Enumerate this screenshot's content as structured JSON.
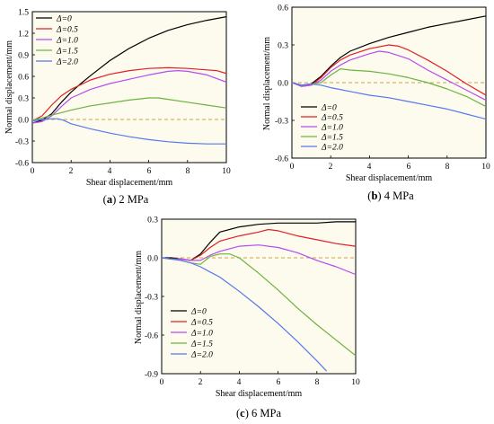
{
  "chart_data": [
    {
      "type": "line",
      "caption_letter": "a",
      "caption_text": "2 MPa",
      "xlabel": "Shear displacement/mm",
      "ylabel": "Normal displacement/mm",
      "xlim": [
        0,
        10
      ],
      "ylim": [
        -0.6,
        1.5
      ],
      "x_ticks": [
        "0",
        "2",
        "4",
        "6",
        "8",
        "10"
      ],
      "y_ticks": [
        "-0.6",
        "-0.3",
        "0.0",
        "0.3",
        "0.6",
        "0.9",
        "1.2",
        "1.5"
      ],
      "legend_position": "top-left",
      "reference_line_y": 0,
      "series": [
        {
          "name": "Δ=0",
          "color": "#000000",
          "x": [
            0,
            0.5,
            1,
            1.5,
            2,
            2.5,
            3,
            4,
            5,
            6,
            7,
            8,
            9,
            10
          ],
          "y": [
            -0.05,
            -0.01,
            0.08,
            0.24,
            0.38,
            0.5,
            0.61,
            0.82,
            0.99,
            1.13,
            1.24,
            1.32,
            1.38,
            1.43
          ]
        },
        {
          "name": "Δ=0.5",
          "color": "#e0202a",
          "x": [
            0,
            0.5,
            1,
            1.5,
            2,
            3,
            4,
            5,
            6,
            7,
            8,
            9,
            9.5,
            10
          ],
          "y": [
            -0.02,
            0.05,
            0.2,
            0.33,
            0.42,
            0.55,
            0.63,
            0.68,
            0.71,
            0.72,
            0.71,
            0.69,
            0.68,
            0.64
          ]
        },
        {
          "name": "Δ=1.0",
          "color": "#b44cf0",
          "x": [
            0,
            0.5,
            1,
            1.5,
            2,
            3,
            4,
            5,
            6,
            7,
            7.5,
            8,
            9,
            10
          ],
          "y": [
            -0.05,
            -0.03,
            0.05,
            0.18,
            0.3,
            0.42,
            0.5,
            0.56,
            0.62,
            0.67,
            0.68,
            0.67,
            0.62,
            0.52
          ]
        },
        {
          "name": "Δ=1.5",
          "color": "#6db33f",
          "x": [
            0,
            0.5,
            1,
            2,
            3,
            4,
            5,
            6,
            6.5,
            7,
            8,
            9,
            10
          ],
          "y": [
            -0.01,
            0.02,
            0.06,
            0.13,
            0.19,
            0.23,
            0.27,
            0.3,
            0.3,
            0.28,
            0.24,
            0.2,
            0.16
          ]
        },
        {
          "name": "Δ=2.0",
          "color": "#5578ef",
          "x": [
            0,
            0.5,
            1,
            1.3,
            1.6,
            2,
            3,
            4,
            5,
            6,
            7,
            8,
            9,
            10
          ],
          "y": [
            -0.02,
            0.0,
            0.01,
            0.01,
            -0.01,
            -0.06,
            -0.13,
            -0.19,
            -0.24,
            -0.28,
            -0.31,
            -0.33,
            -0.34,
            -0.34
          ]
        }
      ]
    },
    {
      "type": "line",
      "caption_letter": "b",
      "caption_text": "4 MPa",
      "xlabel": "Shear displacement/mm",
      "ylabel": "Normal displacement/mm",
      "xlim": [
        0,
        10
      ],
      "ylim": [
        -0.6,
        0.6
      ],
      "x_ticks": [
        "0",
        "2",
        "4",
        "6",
        "8",
        "10"
      ],
      "y_ticks": [
        "-0.6",
        "-0.3",
        "0.0",
        "0.3",
        "0.6"
      ],
      "legend_position": "bottom-left",
      "reference_line_y": 0,
      "series": [
        {
          "name": "Δ=0",
          "color": "#000000",
          "x": [
            0,
            0.5,
            1,
            1.5,
            2,
            2.5,
            3,
            4,
            5,
            6,
            7,
            8,
            9,
            10
          ],
          "y": [
            0,
            -0.02,
            -0.01,
            0.05,
            0.13,
            0.2,
            0.25,
            0.31,
            0.36,
            0.4,
            0.44,
            0.47,
            0.5,
            0.53
          ]
        },
        {
          "name": "Δ=0.5",
          "color": "#e0202a",
          "x": [
            0,
            0.5,
            1,
            1.5,
            2,
            2.5,
            3,
            4,
            5,
            5.5,
            6,
            7,
            8,
            9,
            10
          ],
          "y": [
            0,
            -0.03,
            -0.02,
            0.04,
            0.12,
            0.18,
            0.22,
            0.27,
            0.3,
            0.29,
            0.26,
            0.18,
            0.09,
            -0.01,
            -0.1
          ]
        },
        {
          "name": "Δ=1.0",
          "color": "#b44cf0",
          "x": [
            0,
            0.5,
            1,
            1.5,
            2,
            2.5,
            3,
            4,
            4.5,
            5,
            6,
            7,
            8,
            9,
            10
          ],
          "y": [
            0,
            -0.03,
            -0.02,
            0.02,
            0.09,
            0.14,
            0.18,
            0.23,
            0.25,
            0.24,
            0.19,
            0.1,
            0.02,
            -0.06,
            -0.14
          ]
        },
        {
          "name": "Δ=1.5",
          "color": "#6db33f",
          "x": [
            0,
            0.5,
            1,
            1.5,
            2,
            2.5,
            3,
            4,
            5,
            6,
            7,
            8,
            9,
            10
          ],
          "y": [
            0,
            -0.02,
            -0.01,
            0.0,
            0.06,
            0.11,
            0.1,
            0.09,
            0.07,
            0.04,
            0.0,
            -0.05,
            -0.11,
            -0.19
          ]
        },
        {
          "name": "Δ=2.0",
          "color": "#5578ef",
          "x": [
            0,
            0.5,
            1,
            1.5,
            2,
            3,
            4,
            5,
            6,
            7,
            8,
            9,
            10
          ],
          "y": [
            0,
            -0.02,
            -0.01,
            -0.02,
            -0.04,
            -0.07,
            -0.1,
            -0.12,
            -0.15,
            -0.18,
            -0.21,
            -0.25,
            -0.29
          ]
        }
      ]
    },
    {
      "type": "line",
      "caption_letter": "c",
      "caption_text": "6 MPa",
      "xlabel": "Shear displacement/mm",
      "ylabel": "Normal displacement/mm",
      "xlim": [
        0,
        10
      ],
      "ylim": [
        -0.9,
        0.3
      ],
      "x_ticks": [
        "0",
        "2",
        "4",
        "6",
        "8",
        "10"
      ],
      "y_ticks": [
        "-0.9",
        "-0.6",
        "-0.3",
        "0.0",
        "0.3"
      ],
      "legend_position": "bottom-left",
      "reference_line_y": 0,
      "series": [
        {
          "name": "Δ=0",
          "color": "#000000",
          "x": [
            0,
            0.5,
            1,
            1.5,
            2,
            2.5,
            3,
            4,
            5,
            6,
            7,
            8,
            9,
            10
          ],
          "y": [
            0,
            0.0,
            -0.01,
            -0.02,
            0.03,
            0.12,
            0.2,
            0.24,
            0.26,
            0.27,
            0.27,
            0.27,
            0.28,
            0.28
          ]
        },
        {
          "name": "Δ=0.5",
          "color": "#e0202a",
          "x": [
            0,
            0.5,
            1,
            1.5,
            2,
            2.5,
            3,
            4,
            5,
            5.5,
            6,
            7,
            8,
            9,
            10
          ],
          "y": [
            0,
            -0.01,
            -0.01,
            -0.02,
            0.02,
            0.08,
            0.13,
            0.17,
            0.2,
            0.22,
            0.21,
            0.17,
            0.14,
            0.11,
            0.09
          ]
        },
        {
          "name": "Δ=1.0",
          "color": "#b44cf0",
          "x": [
            0,
            0.5,
            1,
            1.5,
            2,
            2.5,
            3,
            4,
            5,
            6,
            7,
            8,
            9,
            10
          ],
          "y": [
            0,
            -0.01,
            -0.01,
            -0.02,
            -0.02,
            0.02,
            0.05,
            0.09,
            0.1,
            0.08,
            0.04,
            -0.02,
            -0.07,
            -0.13
          ]
        },
        {
          "name": "Δ=1.5",
          "color": "#6db33f",
          "x": [
            0,
            0.5,
            1,
            1.5,
            2,
            2.5,
            3,
            3.5,
            4,
            5,
            6,
            7,
            8,
            9,
            10
          ],
          "y": [
            0,
            -0.01,
            -0.02,
            -0.04,
            -0.05,
            0.01,
            0.03,
            0.03,
            0.0,
            -0.12,
            -0.25,
            -0.39,
            -0.52,
            -0.64,
            -0.76
          ]
        },
        {
          "name": "Δ=2.0",
          "color": "#5578ef",
          "x": [
            0,
            0.5,
            1,
            1.5,
            2,
            2.5,
            3,
            4,
            5,
            6,
            7,
            8,
            8.5
          ],
          "y": [
            0,
            -0.01,
            -0.02,
            -0.04,
            -0.07,
            -0.11,
            -0.15,
            -0.26,
            -0.38,
            -0.51,
            -0.65,
            -0.8,
            -0.88
          ]
        }
      ]
    }
  ]
}
